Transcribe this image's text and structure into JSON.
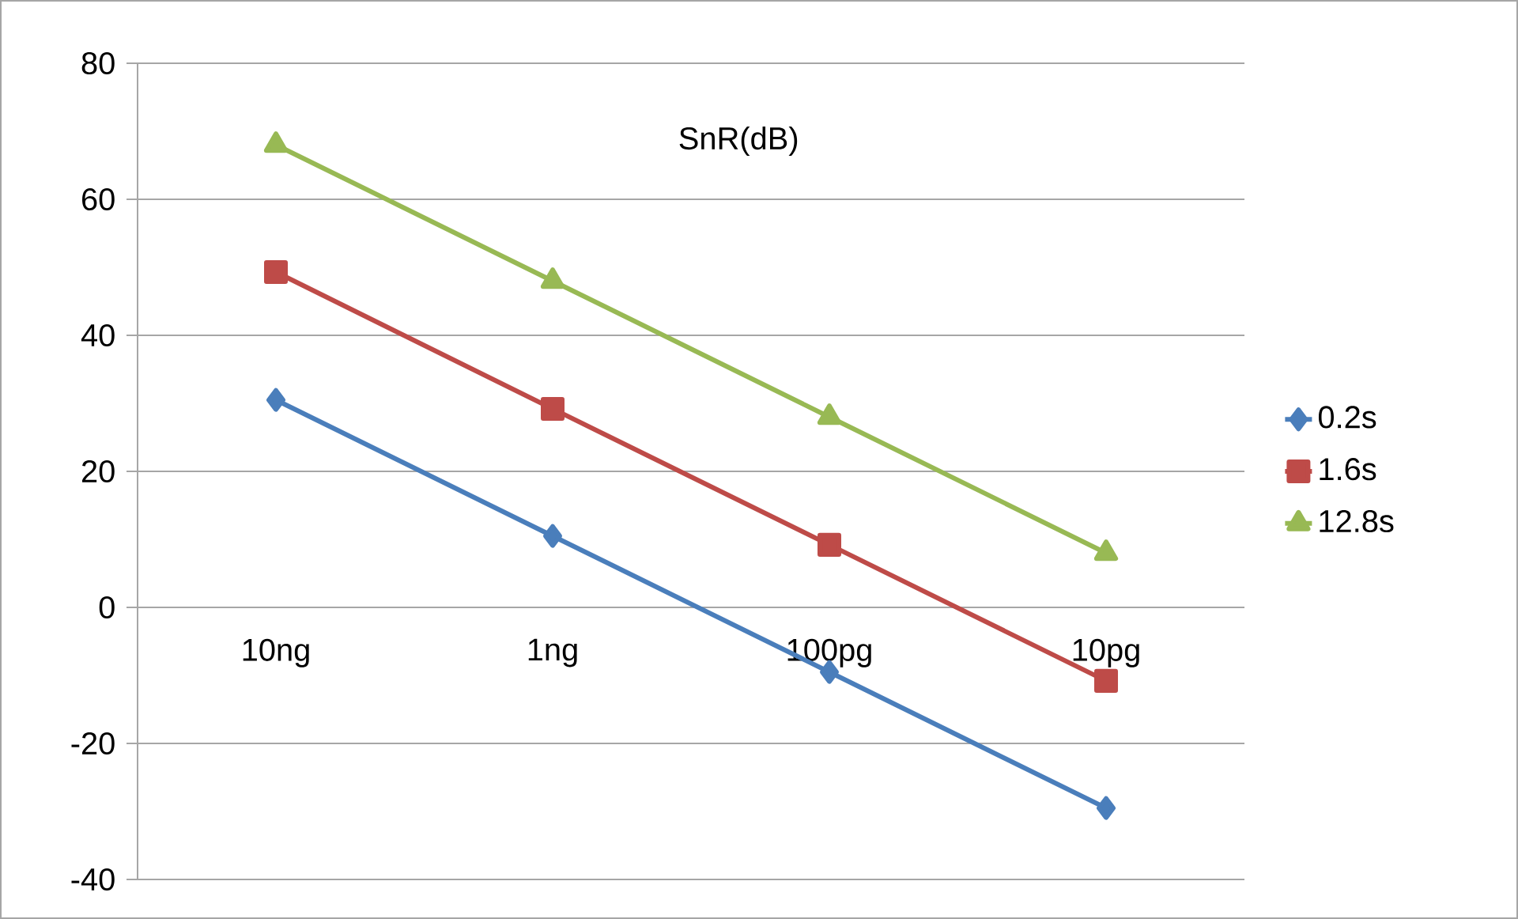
{
  "chart_data": {
    "type": "line",
    "title": "SnR(dB)",
    "categories": [
      "10ng",
      "1ng",
      "100pg",
      "10pg"
    ],
    "series": [
      {
        "name": "0.2s",
        "color": "#4a7ebb",
        "marker": "diamond",
        "values": [
          30.5,
          10.5,
          -9.5,
          -29.5
        ]
      },
      {
        "name": "1.6s",
        "color": "#be4b48",
        "marker": "square",
        "values": [
          49.3,
          29.2,
          9.2,
          -10.8
        ]
      },
      {
        "name": "12.8s",
        "color": "#98b954",
        "marker": "triangle",
        "values": [
          68,
          48,
          28,
          8
        ]
      }
    ],
    "ylim": [
      -40,
      80
    ],
    "yticks": [
      -40,
      -20,
      0,
      20,
      40,
      60,
      80
    ],
    "grid": "y",
    "legend": "right",
    "line_style": "solid"
  }
}
